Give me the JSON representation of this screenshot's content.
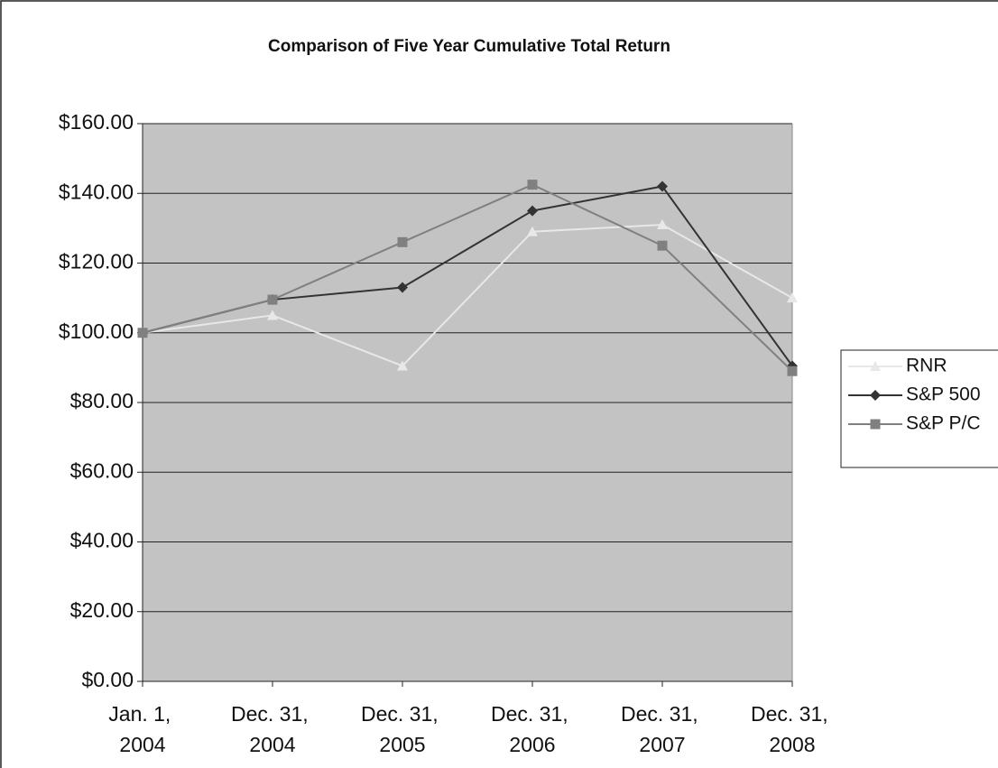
{
  "chart_data": {
    "type": "line",
    "title": "Comparison of Five Year Cumulative Total Return",
    "categories": [
      "Jan. 1, 2004",
      "Dec. 31, 2004",
      "Dec. 31, 2005",
      "Dec. 31, 2006",
      "Dec. 31, 2007",
      "Dec. 31, 2008"
    ],
    "series": [
      {
        "name": "RNR",
        "color": "#e8e8e8",
        "marker": "triangle",
        "values": [
          100,
          105,
          90.5,
          129,
          131,
          110
        ]
      },
      {
        "name": "S&P 500",
        "color": "#333333",
        "marker": "diamond",
        "values": [
          100,
          109.5,
          113,
          135,
          142,
          90.5
        ]
      },
      {
        "name": "S&P P/C",
        "color": "#808080",
        "marker": "square",
        "values": [
          100,
          109.5,
          126,
          142.5,
          125,
          89
        ]
      }
    ],
    "ylim": [
      0,
      160
    ],
    "yticks": [
      {
        "value": 0,
        "label": "$0.00"
      },
      {
        "value": 20,
        "label": "$20.00"
      },
      {
        "value": 40,
        "label": "$40.00"
      },
      {
        "value": 60,
        "label": "$60.00"
      },
      {
        "value": 80,
        "label": "$80.00"
      },
      {
        "value": 100,
        "label": "$100.00"
      },
      {
        "value": 120,
        "label": "$120.00"
      },
      {
        "value": 140,
        "label": "$140.00"
      },
      {
        "value": 160,
        "label": "$160.00"
      }
    ],
    "grid": true,
    "legend": "right"
  }
}
